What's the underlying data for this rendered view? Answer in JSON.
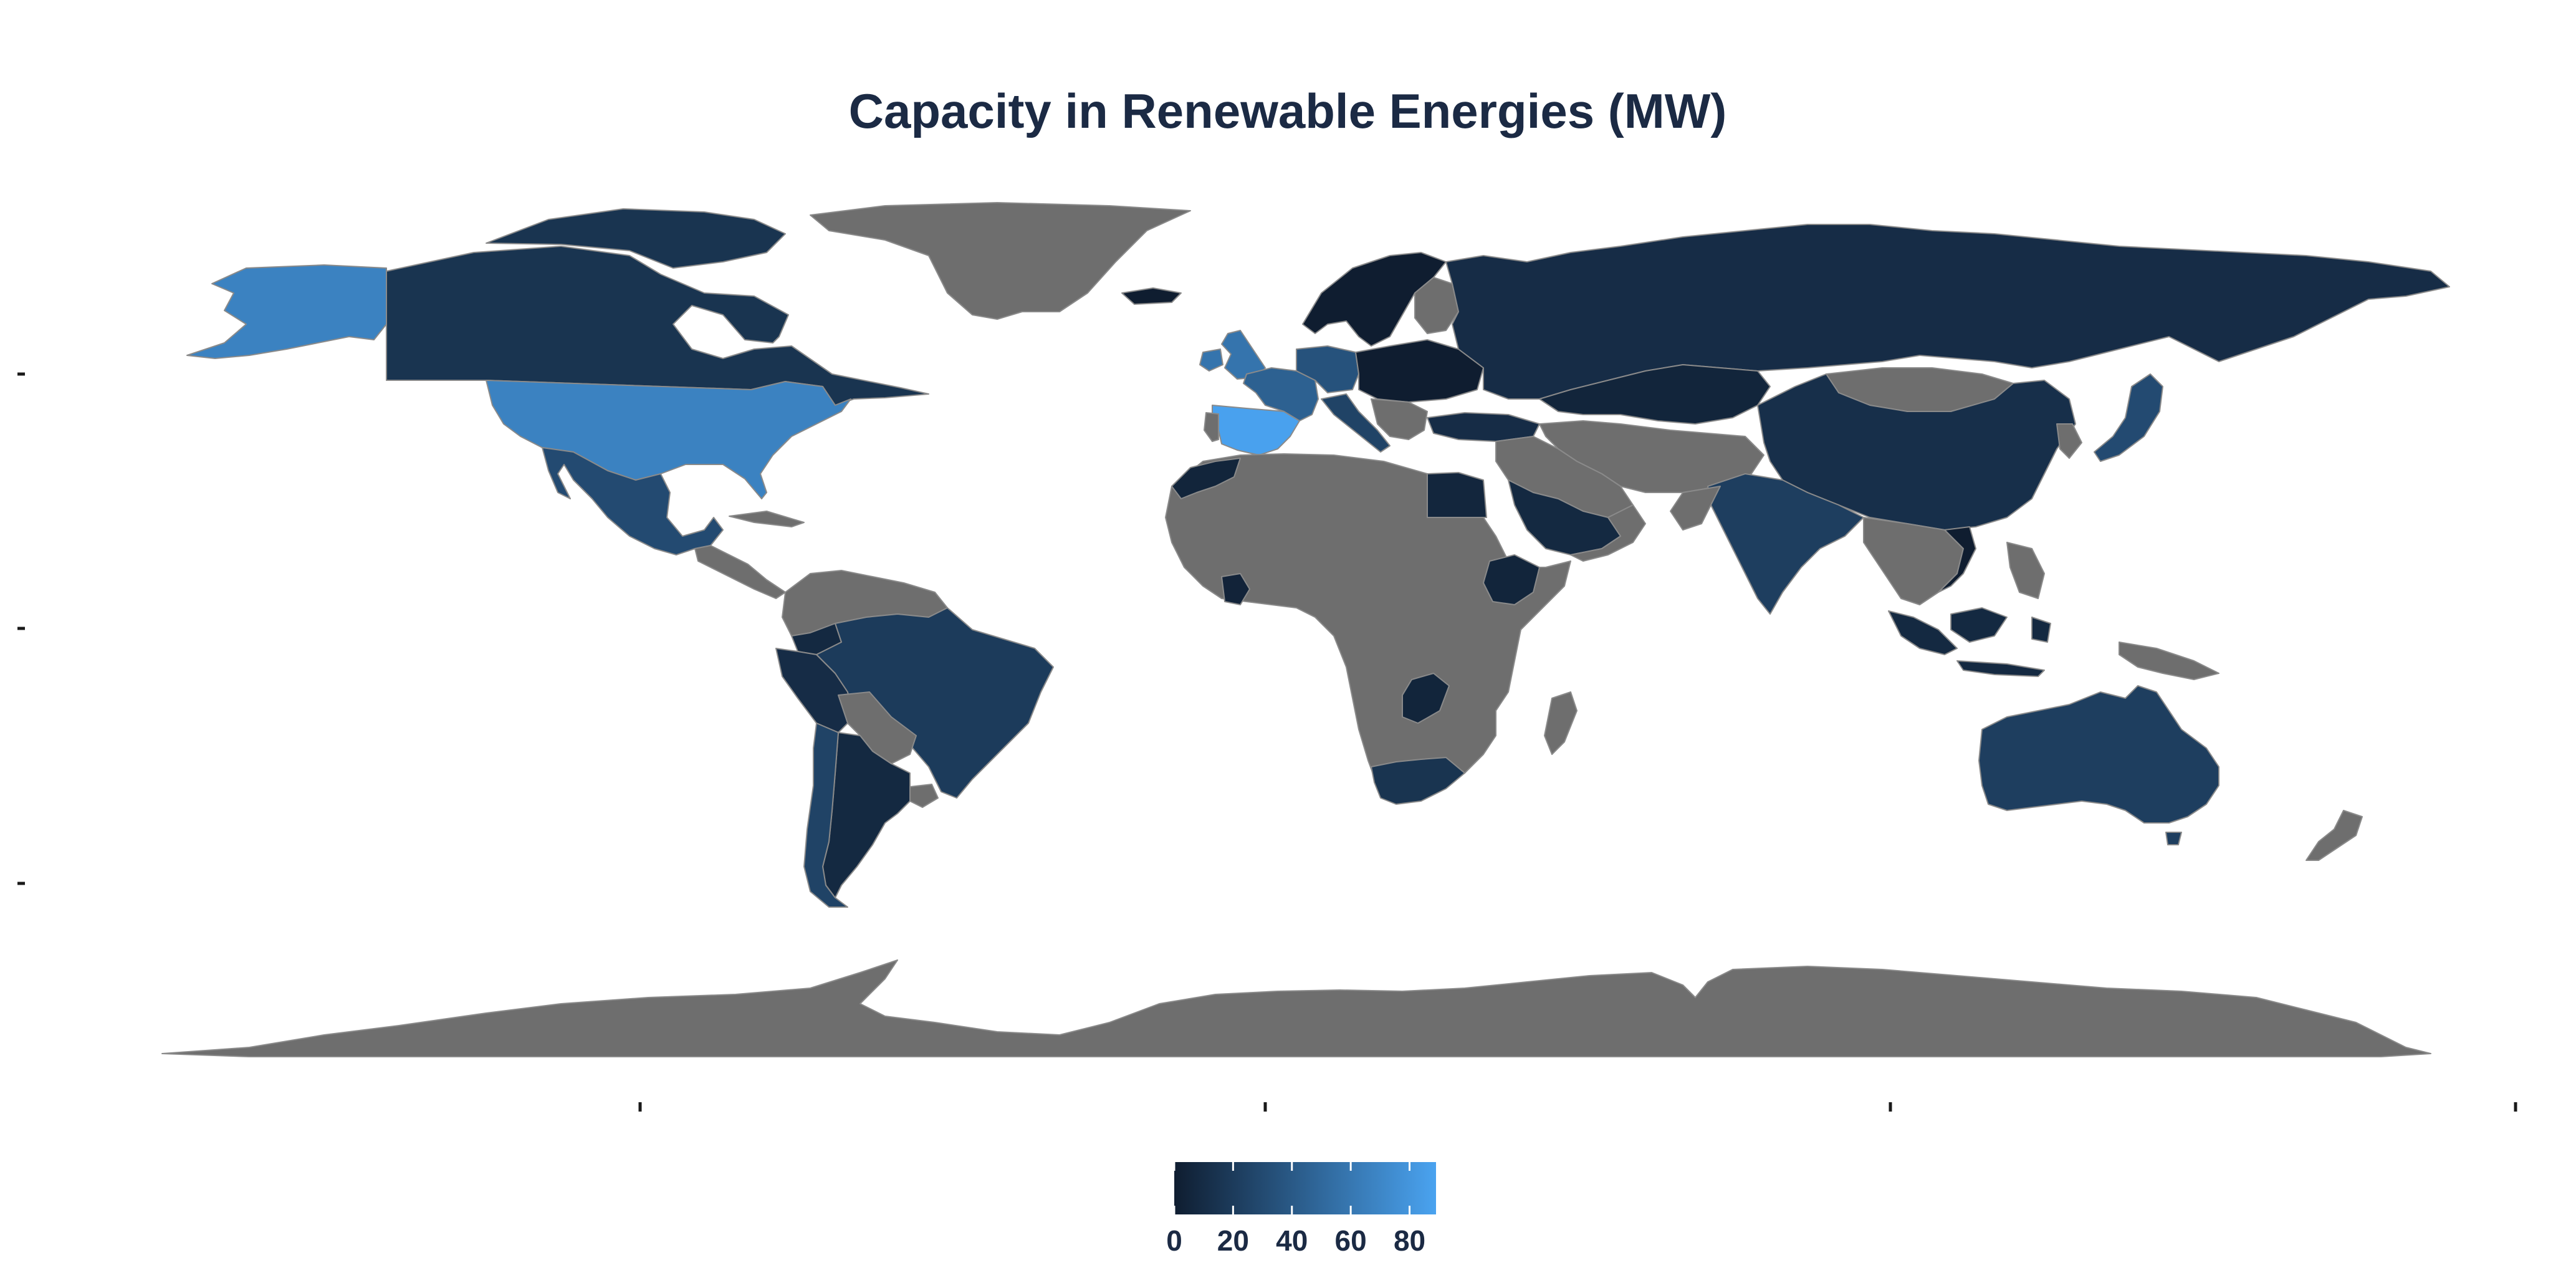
{
  "title": "Capacity in Renewable Energies (MW)",
  "colors": {
    "background": "#ffffff",
    "no_data": "#6e6e6e",
    "title_text": "#1b2a44",
    "legend_text": "#1b2a44",
    "scale_low": "#0f1d30",
    "scale_high": "#4aa3f0"
  },
  "legend": {
    "type": "continuous color scale",
    "min": 0,
    "max": 89,
    "labels": [
      "0",
      "20",
      "40",
      "60",
      "80"
    ],
    "placement": "bottom-center"
  },
  "chart_data": {
    "type": "choropleth",
    "value_name": "Capacity in Renewable Energies (MW)",
    "regions": [
      {
        "name": "Spain",
        "value": 88
      },
      {
        "name": "United States",
        "value": 67
      },
      {
        "name": "Alaska",
        "value": 67
      },
      {
        "name": "United Kingdom",
        "value": 58
      },
      {
        "name": "France",
        "value": 45
      },
      {
        "name": "Mexico",
        "value": 30
      },
      {
        "name": "Canada",
        "value": 15
      },
      {
        "name": "Brazil",
        "value": 20
      },
      {
        "name": "Argentina",
        "value": 8
      },
      {
        "name": "Chile",
        "value": 25
      },
      {
        "name": "Peru",
        "value": 10
      },
      {
        "name": "Colombia",
        "value": 8
      },
      {
        "name": "Russia",
        "value": 10
      },
      {
        "name": "Kazakhstan",
        "value": 5
      },
      {
        "name": "China",
        "value": 12
      },
      {
        "name": "India",
        "value": 22
      },
      {
        "name": "Japan",
        "value": 30
      },
      {
        "name": "Australia",
        "value": 22
      },
      {
        "name": "Indonesia",
        "value": 8
      },
      {
        "name": "South Africa",
        "value": 15
      },
      {
        "name": "Egypt",
        "value": 6
      },
      {
        "name": "Saudi Arabia",
        "value": 8
      },
      {
        "name": "Ethiopia",
        "value": 5
      },
      {
        "name": "Zambia",
        "value": 5
      },
      {
        "name": "Morocco",
        "value": 5
      },
      {
        "name": "Ivory Coast",
        "value": 4
      },
      {
        "name": "Italy",
        "value": 25
      },
      {
        "name": "Germany",
        "value": 35
      },
      {
        "name": "Turkey",
        "value": 10
      }
    ]
  }
}
